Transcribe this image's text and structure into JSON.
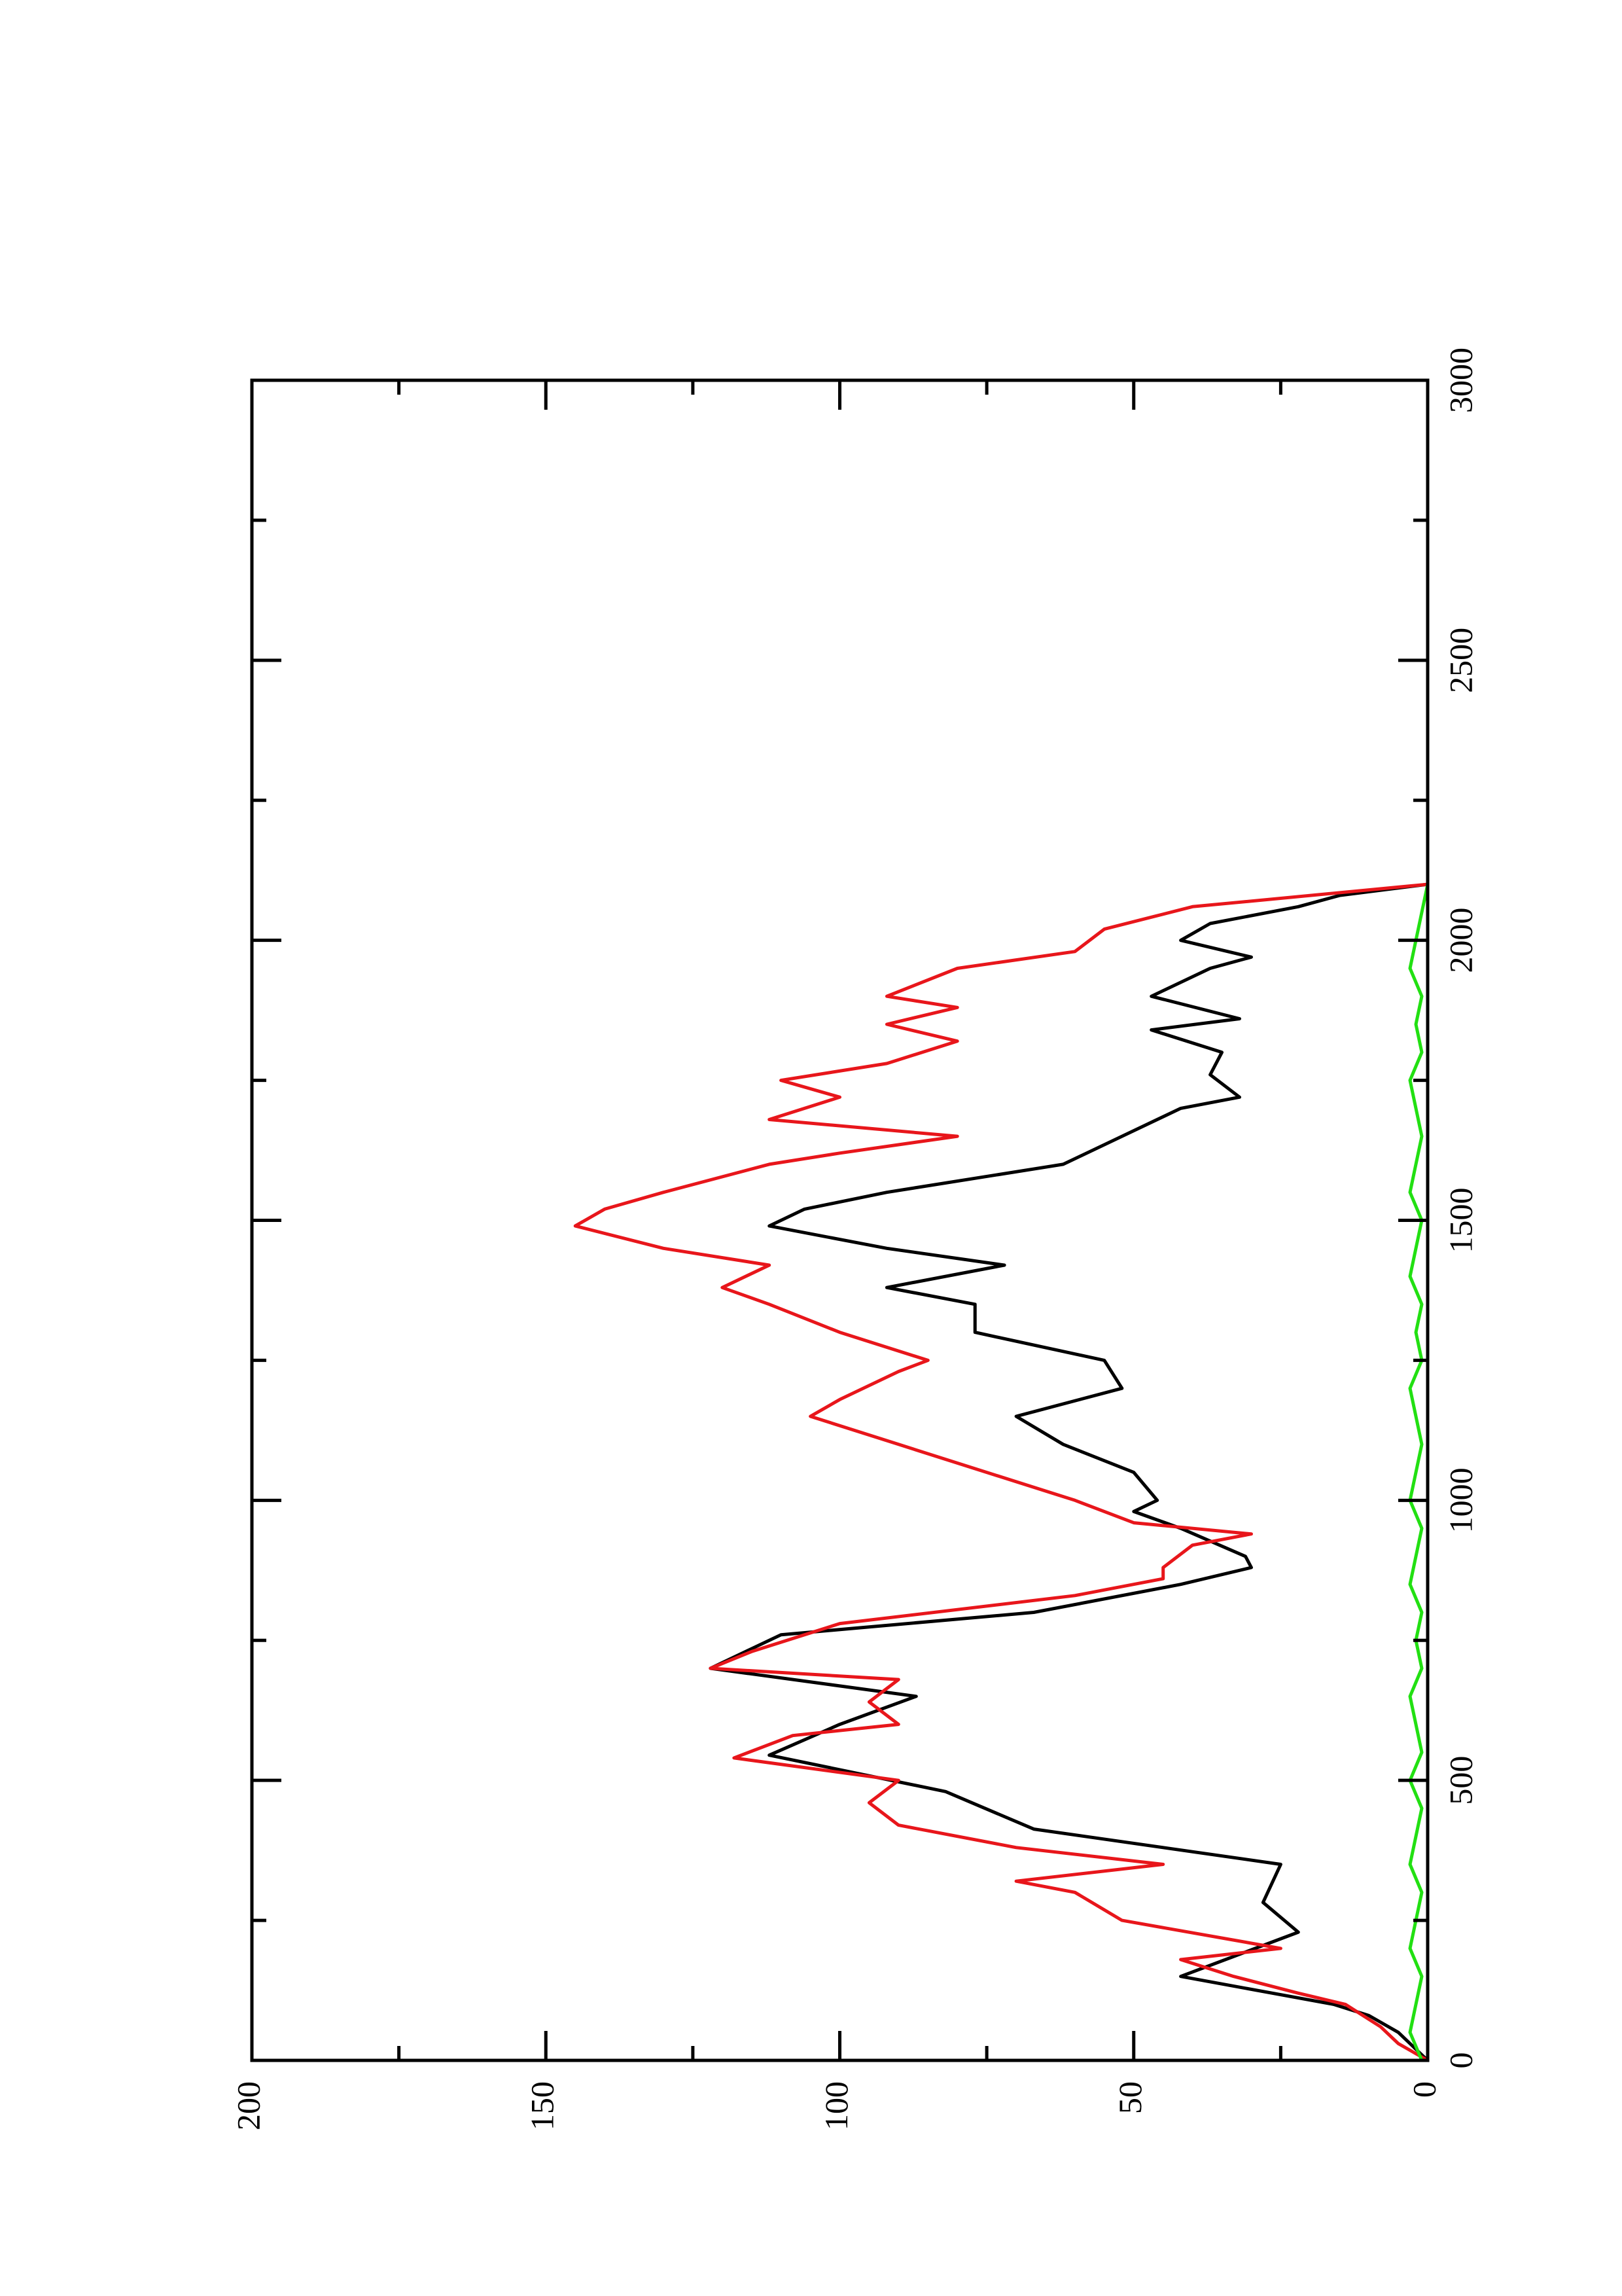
{
  "chart_data": {
    "type": "line",
    "xlim": [
      0,
      3000
    ],
    "xticks": [
      0,
      500,
      1000,
      1500,
      2000,
      2500,
      3000
    ],
    "xminorticks": [
      250,
      750,
      1250,
      1750,
      2250,
      2750
    ],
    "ylim": [
      0,
      200
    ],
    "yticks": [
      0,
      50,
      100,
      150,
      200
    ],
    "yminorticks": [
      25,
      75,
      125,
      175
    ],
    "rotated": true,
    "series": [
      {
        "color": "#000000",
        "x": [
          0,
          20,
          50,
          80,
          100,
          150,
          229,
          282,
          350,
          413,
          480,
          545,
          600,
          650,
          700,
          760,
          800,
          850,
          880,
          900,
          950,
          980,
          1000,
          1050,
          1100,
          1150,
          1200,
          1250,
          1300,
          1350,
          1380,
          1420,
          1450,
          1490,
          1520,
          1550,
          1600,
          1650,
          1700,
          1720,
          1760,
          1800,
          1840,
          1860,
          1900,
          1950,
          1970,
          2000,
          2030,
          2060,
          2080,
          2100
        ],
        "values": [
          0,
          2,
          5,
          10,
          16,
          42,
          22,
          28,
          25,
          67,
          82,
          112,
          100,
          87,
          122,
          110,
          67,
          42,
          30,
          31,
          42,
          50,
          46,
          50,
          62,
          70,
          52,
          55,
          77,
          77,
          92,
          72,
          92,
          112,
          106,
          92,
          62,
          52,
          42,
          32,
          37,
          35,
          47,
          32,
          47,
          37,
          30,
          42,
          37,
          22,
          15,
          0
        ]
      },
      {
        "color": "#e8161b",
        "x": [
          0,
          30,
          60,
          100,
          120,
          150,
          180,
          200,
          250,
          300,
          320,
          350,
          380,
          420,
          460,
          500,
          540,
          580,
          600,
          640,
          680,
          700,
          730,
          780,
          830,
          860,
          880,
          920,
          940,
          960,
          1000,
          1050,
          1100,
          1150,
          1180,
          1230,
          1250,
          1300,
          1350,
          1380,
          1420,
          1450,
          1490,
          1520,
          1550,
          1600,
          1620,
          1650,
          1680,
          1720,
          1750,
          1780,
          1820,
          1850,
          1880,
          1900,
          1950,
          1980,
          2020,
          2060,
          2100
        ],
        "values": [
          0,
          5,
          8,
          14,
          22,
          33,
          42,
          25,
          52,
          60,
          70,
          45,
          70,
          90,
          95,
          90,
          118,
          108,
          90,
          95,
          90,
          122,
          115,
          100,
          60,
          45,
          45,
          40,
          30,
          50,
          60,
          75,
          90,
          105,
          100,
          90,
          85,
          100,
          112,
          120,
          112,
          130,
          145,
          140,
          130,
          112,
          100,
          80,
          112,
          100,
          110,
          92,
          80,
          92,
          80,
          92,
          80,
          60,
          55,
          40,
          0
        ]
      },
      {
        "color": "#22e012",
        "x": [
          0,
          50,
          100,
          150,
          200,
          250,
          300,
          350,
          400,
          450,
          500,
          550,
          600,
          650,
          700,
          750,
          800,
          850,
          900,
          950,
          1000,
          1050,
          1100,
          1150,
          1200,
          1250,
          1300,
          1350,
          1400,
          1450,
          1500,
          1550,
          1600,
          1650,
          1700,
          1750,
          1800,
          1850,
          1900,
          1950,
          2000,
          2050,
          2100
        ],
        "values": [
          1,
          3,
          2,
          1,
          3,
          2,
          1,
          3,
          2,
          1,
          3,
          1,
          2,
          3,
          1,
          2,
          1,
          3,
          2,
          1,
          3,
          2,
          1,
          2,
          3,
          1,
          2,
          1,
          3,
          2,
          1,
          3,
          2,
          1,
          2,
          3,
          1,
          2,
          1,
          3,
          2,
          1,
          0
        ]
      }
    ]
  }
}
